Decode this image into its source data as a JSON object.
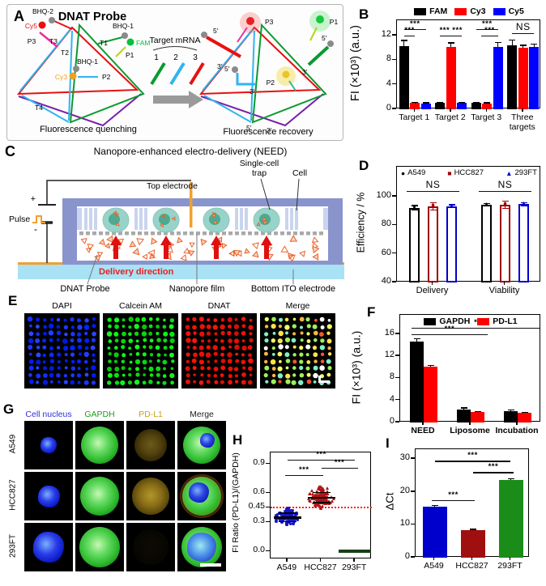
{
  "panels": {
    "A": {
      "label": "A",
      "title": "DNAT Probe",
      "caption_left": "Fluorescence quenching",
      "caption_right": "Fluorescence recovery",
      "mrna_title": "Target mRNA",
      "mrna_nums": [
        "1",
        "2",
        "3"
      ],
      "L": {
        "BHQ2": "BHQ-2",
        "Cy5": "Cy5",
        "P3": "P3",
        "T3": "T3",
        "T2": "T2",
        "T1": "T1",
        "BHQ1a": "BHQ-1",
        "FAM": "FAM",
        "P1": "P1",
        "BHQ1b": "BHQ-1",
        "Cy3": "Cy3",
        "P2": "P2",
        "T4": "T4"
      },
      "R": {
        "P3": "P3",
        "P1": "P1",
        "P2": "P2",
        "f1": "5′",
        "t1": "3′",
        "f2": "5′",
        "t2": "3′",
        "f3": "5′",
        "t3": "3′",
        "f4": "5′",
        "t4": "3′"
      }
    },
    "B": {
      "label": "B"
    },
    "C": {
      "label": "C",
      "title": "Nanopore-enhanced electro-delivery (NEED)",
      "top_electrode": "Top electrode",
      "trap_line1": "Single-cell",
      "trap_line2": "trap",
      "cell": "Cell",
      "pulse": "Pulse",
      "plus": "+",
      "minus": "-",
      "delivery": "Delivery direction",
      "probe": "DNAT Probe",
      "film": "Nanopore film",
      "ito": "Bottom ITO electrode"
    },
    "D": {
      "label": "D"
    },
    "E": {
      "label": "E",
      "titles": [
        "DAPI",
        "Calcein AM",
        "DNAT",
        "Merge"
      ]
    },
    "F": {
      "label": "F"
    },
    "G": {
      "label": "G",
      "headers": [
        {
          "text": "Cell nucleus",
          "color": "#2f2fd8"
        },
        {
          "text": "GAPDH",
          "color": "#1fa01f"
        },
        {
          "text": "PD-L1",
          "color": "#c8a21a"
        },
        {
          "text": "Merge",
          "color": "#222222"
        }
      ],
      "rows": [
        "A549",
        "HCC827",
        "293FT"
      ]
    },
    "H": {
      "label": "H"
    },
    "I": {
      "label": "I"
    }
  },
  "chart_data": [
    {
      "id": "B",
      "type": "bar",
      "ylabel": "FI (×10³) (a.u.)",
      "ylim": [
        0,
        14.5
      ],
      "yticks": [
        0,
        4,
        8,
        12
      ],
      "categories": [
        [
          "Target 1"
        ],
        [
          "Target 2"
        ],
        [
          "Target 3"
        ],
        [
          "Three",
          "targets"
        ]
      ],
      "series": [
        {
          "name": "FAM",
          "color": "#000000",
          "values": [
            10.3,
            1.0,
            1.05,
            10.4
          ],
          "errors": [
            0.9,
            0.1,
            0.1,
            0.9
          ]
        },
        {
          "name": "Cy3",
          "color": "#ff0000",
          "values": [
            1.0,
            10.2,
            0.95,
            10.05
          ],
          "errors": [
            0.1,
            0.6,
            0.1,
            0.35
          ]
        },
        {
          "name": "Cy5",
          "color": "#0000ff",
          "values": [
            0.95,
            1.0,
            10.1,
            10.2
          ],
          "errors": [
            0.1,
            0.1,
            0.8,
            0.45
          ]
        }
      ],
      "legend": {
        "marker": "rect"
      },
      "sig": [
        {
          "x1": 0.049,
          "x2": 0.201,
          "y": 13.1,
          "label": "***"
        },
        {
          "x1": 0.049,
          "x2": 0.125,
          "y": 12.0,
          "label": "***"
        },
        {
          "x1": 0.299,
          "x2": 0.451,
          "y": 12.0,
          "label": "*** ***"
        },
        {
          "x1": 0.549,
          "x2": 0.701,
          "y": 13.1,
          "label": "***"
        },
        {
          "x1": 0.585,
          "x2": 0.701,
          "y": 12.0,
          "label": "***"
        },
        {
          "x1": 0.8,
          "x2": 0.95,
          "y": 12.4,
          "label": "NS",
          "size": 12
        }
      ]
    },
    {
      "id": "D",
      "type": "bar",
      "hollow": true,
      "baseline": 40,
      "err_color": "series",
      "ylabel": "Efficiency / %",
      "ylim": [
        40,
        121
      ],
      "yticks": [
        40,
        60,
        80,
        100
      ],
      "categories": [
        [
          "Delivery"
        ],
        [
          "Viability"
        ]
      ],
      "series": [
        {
          "name": "A549",
          "color": "#000000",
          "marker": "circle",
          "values": [
            92.3,
            94.3
          ],
          "errors": [
            1.6,
            0.8
          ]
        },
        {
          "name": "HCC827",
          "color": "#a00000",
          "marker": "square",
          "values": [
            93.3,
            94.3
          ],
          "errors": [
            2.6,
            2.6
          ]
        },
        {
          "name": "293FT",
          "color": "#0000cc",
          "marker": "triangle",
          "values": [
            93.3,
            94.8
          ],
          "errors": [
            1.0,
            1.0
          ]
        }
      ],
      "legend": {
        "marker": "shape"
      },
      "sig": [
        {
          "x1": 0.07,
          "x2": 0.43,
          "y": 104,
          "label": "NS",
          "size": 12
        },
        {
          "x1": 0.57,
          "x2": 0.93,
          "y": 104,
          "label": "NS",
          "size": 12
        }
      ]
    },
    {
      "id": "F",
      "type": "bar",
      "cat_bold": true,
      "ylabel": "FI (×10³) (a.u.)",
      "ylim": [
        0,
        19.5
      ],
      "yticks": [
        0,
        4,
        8,
        12,
        16
      ],
      "categories": [
        [
          "NEED"
        ],
        [
          "Liposome"
        ],
        [
          "Incubation"
        ]
      ],
      "series": [
        {
          "name": "GAPDH",
          "color": "#000000",
          "values": [
            14.7,
            2.4,
            2.05
          ],
          "errors": [
            0.5,
            0.25,
            0.2
          ]
        },
        {
          "name": "PD-L1",
          "color": "#ff0000",
          "values": [
            10.1,
            1.85,
            1.7
          ],
          "errors": [
            0.2,
            0.15,
            0.15
          ]
        }
      ],
      "legend": {
        "marker": "rect"
      },
      "sig": [
        {
          "x1": 0.08,
          "x2": 0.99,
          "y": 17.2,
          "label": "***",
          "lx": 0.56
        },
        {
          "x1": 0.08,
          "x2": 0.62,
          "y": 16.0,
          "label": "***"
        }
      ]
    },
    {
      "id": "H",
      "type": "swarm",
      "ylabel": "FI Ratio (PD-L1)/(GAPDH)",
      "ylim": [
        -0.08,
        1.02
      ],
      "yticks": [
        0.0,
        0.3,
        0.45,
        0.6,
        0.9
      ],
      "ytick_labels": [
        "0.0",
        "0.3",
        "0.45",
        "0.6",
        "0.9"
      ],
      "categories": [
        "A549",
        "HCC827",
        "293FT"
      ],
      "refline": {
        "y": 0.45,
        "color": "#ff2020",
        "style": "dotted"
      },
      "groups": [
        {
          "name": "A549",
          "color": "#1414cc",
          "mean": 0.35,
          "sd": 0.042,
          "n": 85,
          "shape": "circle"
        },
        {
          "name": "HCC827",
          "color": "#b31212",
          "mean": 0.555,
          "sd": 0.05,
          "n": 120,
          "shape": "triangle"
        },
        {
          "name": "293FT",
          "color": "#173f17",
          "flat": 0.004
        }
      ],
      "sig": [
        {
          "x1": 0.17,
          "x2": 0.83,
          "y": 0.945,
          "label": "***"
        },
        {
          "x1": 0.5,
          "x2": 0.86,
          "y": 0.865,
          "label": "***"
        },
        {
          "x1": 0.14,
          "x2": 0.52,
          "y": 0.79,
          "label": "***"
        }
      ]
    },
    {
      "id": "I",
      "type": "bar",
      "ylabel": "ΔCt",
      "ylim": [
        0,
        33
      ],
      "yticks": [
        0,
        10,
        20,
        30
      ],
      "categories": [
        [
          "A549"
        ],
        [
          "HCC827"
        ],
        [
          "293FT"
        ]
      ],
      "series": [
        {
          "name": "dCt",
          "colors": [
            "#0000cc",
            "#a00f0f",
            "#1a8c1a"
          ],
          "values": [
            15.5,
            8.3,
            23.7
          ],
          "errors": [
            0.35,
            0.3,
            0.3
          ]
        }
      ],
      "sig": [
        {
          "x1": 0.17,
          "x2": 0.83,
          "y": 29.5,
          "label": "***"
        },
        {
          "x1": 0.5,
          "x2": 0.86,
          "y": 26.0,
          "label": "***"
        },
        {
          "x1": 0.14,
          "x2": 0.52,
          "y": 17.5,
          "label": "***"
        }
      ]
    }
  ]
}
